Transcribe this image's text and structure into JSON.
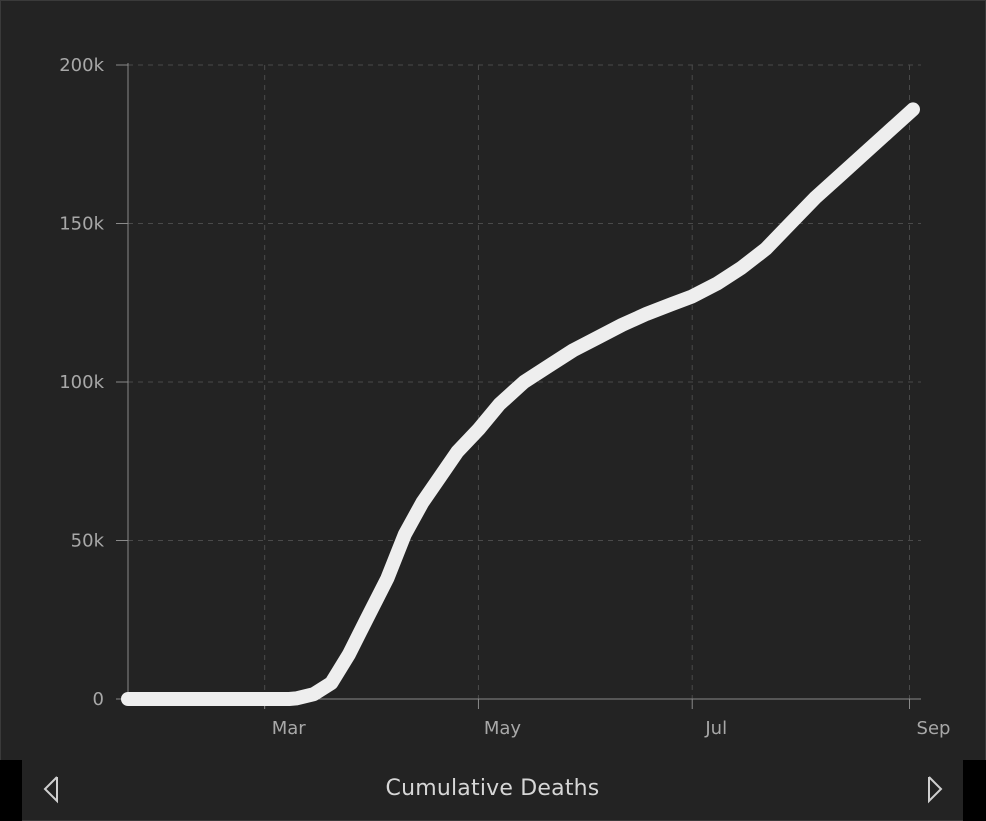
{
  "footer": {
    "title": "Cumulative Deaths",
    "prev_icon": "chevron-left-icon",
    "next_icon": "chevron-right-icon"
  },
  "colors": {
    "background": "#232323",
    "line": "#eeeeee",
    "grid": "#4a4a4a",
    "axis": "#8a8a8a",
    "text": "#a8a8a8"
  },
  "chart_data": {
    "type": "line",
    "title": "",
    "xlabel": "",
    "ylabel": "",
    "grid": true,
    "x_ticks": [
      {
        "date": "2020-03-01",
        "label": "Mar"
      },
      {
        "date": "2020-05-01",
        "label": "May"
      },
      {
        "date": "2020-07-01",
        "label": "Jul"
      },
      {
        "date": "2020-09-01",
        "label": "Sep"
      }
    ],
    "y_ticks": [
      {
        "value": 0,
        "label": "0"
      },
      {
        "value": 50000,
        "label": "50k"
      },
      {
        "value": 100000,
        "label": "100k"
      },
      {
        "value": 150000,
        "label": "150k"
      },
      {
        "value": 200000,
        "label": "200k"
      }
    ],
    "xlim": [
      "2020-01-22",
      "2020-09-02"
    ],
    "ylim": [
      0,
      200000
    ],
    "series": [
      {
        "points": [
          {
            "x": "2020-01-22",
            "y": 0
          },
          {
            "x": "2020-02-15",
            "y": 0
          },
          {
            "x": "2020-03-01",
            "y": 0
          },
          {
            "x": "2020-03-08",
            "y": 0
          },
          {
            "x": "2020-03-10",
            "y": 200
          },
          {
            "x": "2020-03-15",
            "y": 1500
          },
          {
            "x": "2020-03-20",
            "y": 5000
          },
          {
            "x": "2020-03-25",
            "y": 14000
          },
          {
            "x": "2020-03-30",
            "y": 25000
          },
          {
            "x": "2020-04-05",
            "y": 38000
          },
          {
            "x": "2020-04-10",
            "y": 52000
          },
          {
            "x": "2020-04-15",
            "y": 62000
          },
          {
            "x": "2020-04-20",
            "y": 70000
          },
          {
            "x": "2020-04-25",
            "y": 78000
          },
          {
            "x": "2020-05-01",
            "y": 85000
          },
          {
            "x": "2020-05-07",
            "y": 93000
          },
          {
            "x": "2020-05-14",
            "y": 100000
          },
          {
            "x": "2020-05-21",
            "y": 105000
          },
          {
            "x": "2020-05-28",
            "y": 110000
          },
          {
            "x": "2020-06-04",
            "y": 114000
          },
          {
            "x": "2020-06-11",
            "y": 118000
          },
          {
            "x": "2020-06-18",
            "y": 121500
          },
          {
            "x": "2020-06-25",
            "y": 124500
          },
          {
            "x": "2020-07-01",
            "y": 127000
          },
          {
            "x": "2020-07-08",
            "y": 131000
          },
          {
            "x": "2020-07-15",
            "y": 136000
          },
          {
            "x": "2020-07-22",
            "y": 142000
          },
          {
            "x": "2020-07-29",
            "y": 150000
          },
          {
            "x": "2020-08-05",
            "y": 158000
          },
          {
            "x": "2020-08-12",
            "y": 165000
          },
          {
            "x": "2020-08-19",
            "y": 172000
          },
          {
            "x": "2020-08-26",
            "y": 179000
          },
          {
            "x": "2020-09-02",
            "y": 186000
          }
        ]
      }
    ]
  }
}
